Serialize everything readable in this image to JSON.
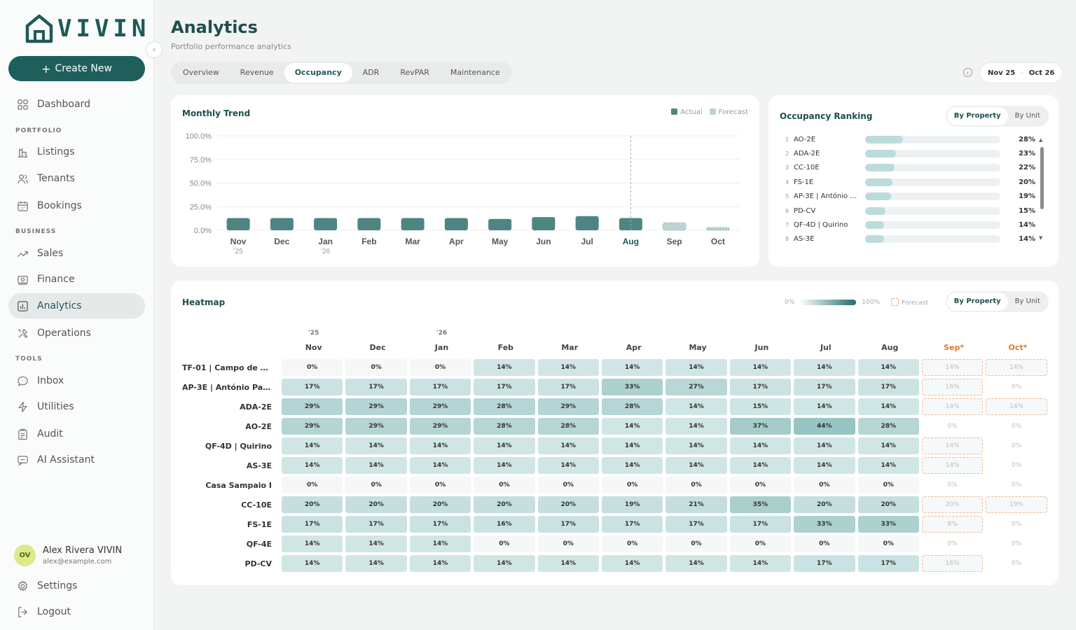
{
  "brand": {
    "logo_text": "VIVIN"
  },
  "sidebar": {
    "create_label": "Create New",
    "items": [
      {
        "label": "Dashboard",
        "icon": "dashboard-icon"
      },
      {
        "label": "Listings",
        "icon": "listings-icon"
      },
      {
        "label": "Tenants",
        "icon": "tenants-icon"
      },
      {
        "label": "Bookings",
        "icon": "calendar-icon"
      },
      {
        "label": "Sales",
        "icon": "trend-icon"
      },
      {
        "label": "Finance",
        "icon": "finance-icon"
      },
      {
        "label": "Analytics",
        "icon": "analytics-icon",
        "active": true
      },
      {
        "label": "Operations",
        "icon": "tools-icon"
      },
      {
        "label": "Inbox",
        "icon": "chat-icon"
      },
      {
        "label": "Utilities",
        "icon": "bolt-icon"
      },
      {
        "label": "Audit",
        "icon": "clipboard-icon"
      },
      {
        "label": "AI Assistant",
        "icon": "ai-chat-icon"
      }
    ],
    "sections": [
      "PORTFOLIO",
      "BUSINESS",
      "TOOLS"
    ],
    "user": {
      "initials": "OV",
      "name": "Alex Rivera VIVIN",
      "email": "alex@example.com"
    },
    "settings_label": "Settings",
    "logout_label": "Logout"
  },
  "header": {
    "title": "Analytics",
    "subtitle": "Portfolio performance analytics",
    "tabs": [
      "Overview",
      "Revenue",
      "Occupancy",
      "ADR",
      "RevPAR",
      "Maintenance"
    ],
    "active_tab": "Occupancy",
    "date_from": "Nov 25",
    "date_sep": "-",
    "date_to": "Oct 26"
  },
  "colors": {
    "accent": "#1e5f5c",
    "actual": "#4e8583",
    "forecast": "#b9d4d2",
    "forecast_border": "#e8a06a"
  },
  "trend": {
    "title": "Monthly Trend",
    "legend_actual": "Actual",
    "legend_forecast": "Forecast"
  },
  "chart_data": {
    "type": "bar",
    "categories": [
      "Nov",
      "Dec",
      "Jan",
      "Feb",
      "Mar",
      "Apr",
      "May",
      "Jun",
      "Jul",
      "Aug",
      "Sep",
      "Oct"
    ],
    "sublabels": [
      "'25",
      "",
      "'26",
      "",
      "",
      "",
      "",
      "",
      "",
      "",
      "",
      ""
    ],
    "values": [
      13,
      13,
      13,
      13,
      13,
      13,
      12,
      14,
      15,
      13,
      8,
      3
    ],
    "forecast_from_index": 10,
    "current_index": 9,
    "yticks": [
      "100.0%",
      "75.0%",
      "50.0%",
      "25.0%",
      "0.0%"
    ],
    "ylim": [
      0,
      100
    ]
  },
  "ranking": {
    "title": "Occupancy Ranking",
    "toggle": [
      "By Property",
      "By Unit"
    ],
    "items": [
      {
        "rank": "1",
        "name": "AO-2E",
        "value": "28%",
        "pct": 28
      },
      {
        "rank": "2",
        "name": "ADA-2E",
        "value": "23%",
        "pct": 23
      },
      {
        "rank": "3",
        "name": "CC-10E",
        "value": "22%",
        "pct": 22
      },
      {
        "rank": "4",
        "name": "FS-1E",
        "value": "20%",
        "pct": 20
      },
      {
        "rank": "5",
        "name": "AP-3E | António …",
        "value": "19%",
        "pct": 19
      },
      {
        "rank": "6",
        "name": "PD-CV",
        "value": "15%",
        "pct": 15
      },
      {
        "rank": "7",
        "name": "QF-4D | Quirino",
        "value": "14%",
        "pct": 14
      },
      {
        "rank": "8",
        "name": "AS-3E",
        "value": "14%",
        "pct": 14
      }
    ]
  },
  "heatmap": {
    "title": "Heatmap",
    "scale_min": "0%",
    "scale_max": "100%",
    "forecast_label": "Forecast",
    "toggle": [
      "By Property",
      "By Unit"
    ],
    "columns": [
      "Nov",
      "Dec",
      "Jan",
      "Feb",
      "Mar",
      "Apr",
      "May",
      "Jun",
      "Jul",
      "Aug",
      "Sep*",
      "Oct*"
    ],
    "years": [
      "'25",
      "",
      "'26",
      "",
      "",
      "",
      "",
      "",
      "",
      "",
      "",
      ""
    ],
    "forecast_columns": [
      10,
      11
    ],
    "rows": [
      {
        "name": "TF-01 | Campo de Ou…",
        "values": [
          0,
          0,
          0,
          14,
          14,
          14,
          14,
          14,
          14,
          14,
          14,
          14
        ],
        "fc_flag": [
          1,
          1
        ]
      },
      {
        "name": "AP-3E | António Pat…",
        "values": [
          17,
          17,
          17,
          17,
          17,
          33,
          27,
          17,
          17,
          17,
          16,
          0
        ],
        "fc_flag": [
          1,
          0
        ]
      },
      {
        "name": "ADA-2E",
        "values": [
          29,
          29,
          29,
          28,
          29,
          28,
          14,
          15,
          14,
          14,
          14,
          14
        ],
        "fc_flag": [
          1,
          1
        ]
      },
      {
        "name": "AO-2E",
        "values": [
          29,
          29,
          29,
          28,
          28,
          14,
          14,
          37,
          44,
          28,
          0,
          0
        ],
        "fc_flag": [
          0,
          0
        ]
      },
      {
        "name": "QF-4D | Quirino",
        "values": [
          14,
          14,
          14,
          14,
          14,
          14,
          14,
          14,
          14,
          14,
          14,
          0
        ],
        "fc_flag": [
          1,
          0
        ]
      },
      {
        "name": "AS-3E",
        "values": [
          14,
          14,
          14,
          14,
          14,
          14,
          14,
          14,
          14,
          14,
          14,
          0
        ],
        "fc_flag": [
          1,
          0
        ]
      },
      {
        "name": "Casa Sampaio I",
        "values": [
          0,
          0,
          0,
          0,
          0,
          0,
          0,
          0,
          0,
          0,
          0,
          0
        ],
        "fc_flag": [
          0,
          0
        ]
      },
      {
        "name": "CC-10E",
        "values": [
          20,
          20,
          20,
          20,
          20,
          19,
          21,
          35,
          20,
          20,
          20,
          19
        ],
        "fc_flag": [
          1,
          1
        ]
      },
      {
        "name": "FS-1E",
        "values": [
          17,
          17,
          17,
          16,
          17,
          17,
          17,
          17,
          33,
          33,
          8,
          0
        ],
        "fc_flag": [
          1,
          0
        ]
      },
      {
        "name": "QF-4E",
        "values": [
          14,
          14,
          14,
          0,
          0,
          0,
          0,
          0,
          0,
          0,
          0,
          0
        ],
        "fc_flag": [
          0,
          0
        ]
      },
      {
        "name": "PD-CV",
        "values": [
          14,
          14,
          14,
          14,
          14,
          14,
          14,
          14,
          17,
          17,
          16,
          0
        ],
        "fc_flag": [
          1,
          0
        ]
      }
    ]
  }
}
